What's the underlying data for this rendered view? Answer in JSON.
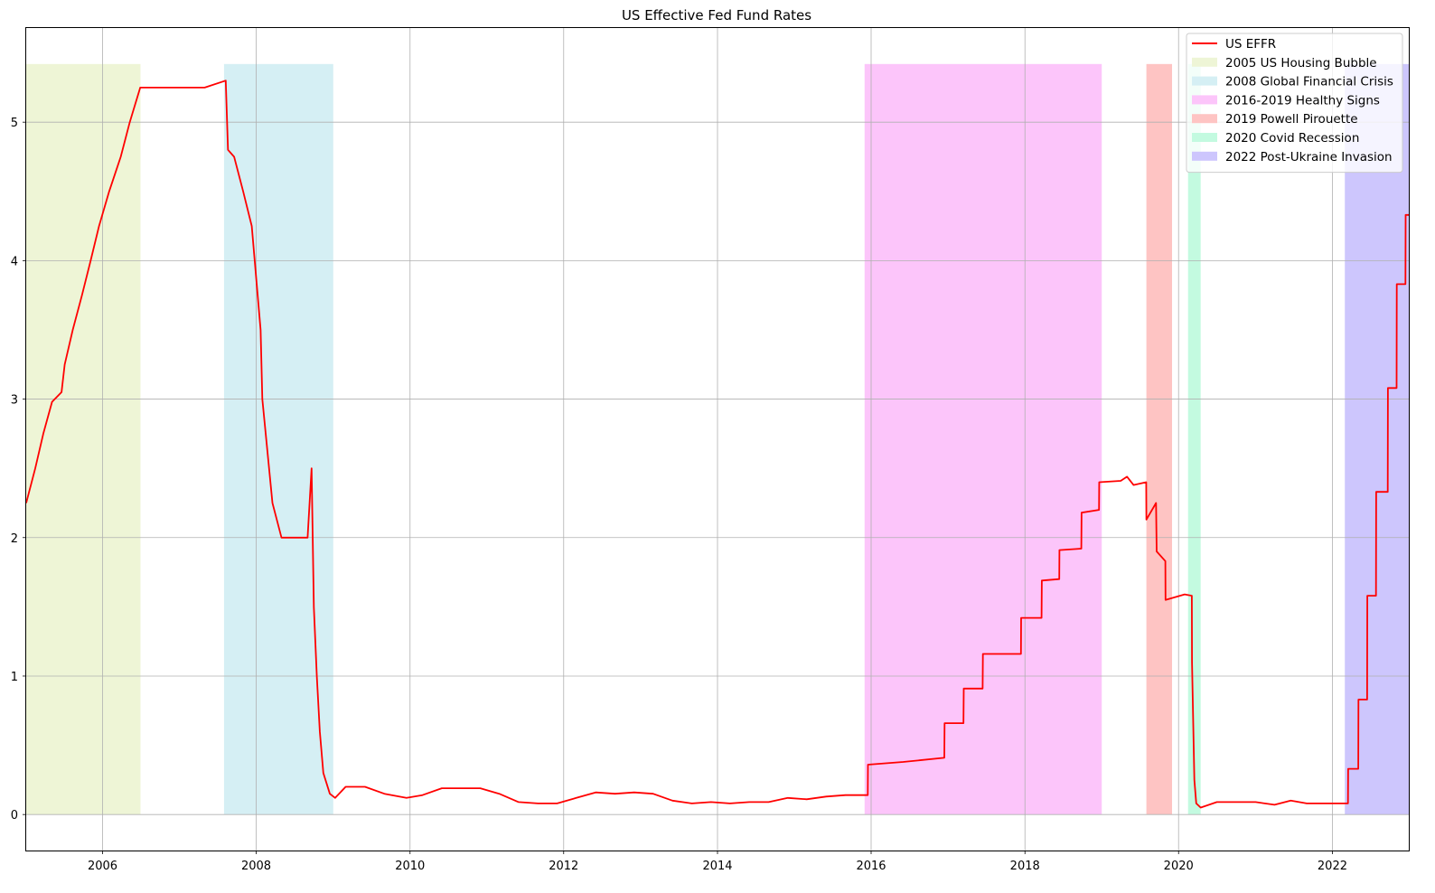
{
  "chart_data": {
    "type": "line",
    "title": "US Effective Fed Fund Rates",
    "xlabel": "",
    "ylabel": "",
    "xlim": [
      "2005-01-03",
      "2022-12-30"
    ],
    "ylim": [
      -0.26,
      5.68
    ],
    "grid": true,
    "legend_position": "top-right",
    "x_ticks": [
      "2006",
      "2008",
      "2010",
      "2012",
      "2014",
      "2016",
      "2018",
      "2020",
      "2022"
    ],
    "y_ticks": [
      "0",
      "1",
      "2",
      "3",
      "4",
      "5"
    ],
    "series": [
      {
        "name": "US EFFR",
        "color": "#ff0000",
        "points": [
          [
            "2005-01-03",
            2.25
          ],
          [
            "2005-02-15",
            2.5
          ],
          [
            "2005-03-25",
            2.75
          ],
          [
            "2005-05-06",
            2.98
          ],
          [
            "2005-06-20",
            3.05
          ],
          [
            "2005-07-05",
            3.25
          ],
          [
            "2005-08-12",
            3.5
          ],
          [
            "2005-09-25",
            3.75
          ],
          [
            "2005-11-05",
            4.0
          ],
          [
            "2005-12-15",
            4.25
          ],
          [
            "2006-02-01",
            4.5
          ],
          [
            "2006-03-28",
            4.75
          ],
          [
            "2006-05-10",
            5.0
          ],
          [
            "2006-06-29",
            5.25
          ],
          [
            "2006-09-01",
            5.25
          ],
          [
            "2007-01-01",
            5.25
          ],
          [
            "2007-05-01",
            5.25
          ],
          [
            "2007-08-09",
            5.3
          ],
          [
            "2007-08-20",
            4.8
          ],
          [
            "2007-09-18",
            4.75
          ],
          [
            "2007-10-31",
            4.5
          ],
          [
            "2007-12-11",
            4.25
          ],
          [
            "2008-01-22",
            3.5
          ],
          [
            "2008-01-30",
            3.0
          ],
          [
            "2008-03-18",
            2.25
          ],
          [
            "2008-04-30",
            2.0
          ],
          [
            "2008-07-01",
            2.0
          ],
          [
            "2008-09-01",
            2.0
          ],
          [
            "2008-09-20",
            2.5
          ],
          [
            "2008-10-01",
            1.5
          ],
          [
            "2008-10-15",
            1.0
          ],
          [
            "2008-10-29",
            0.6
          ],
          [
            "2008-11-15",
            0.3
          ],
          [
            "2008-12-16",
            0.15
          ],
          [
            "2009-01-10",
            0.12
          ],
          [
            "2009-03-01",
            0.2
          ],
          [
            "2009-06-01",
            0.2
          ],
          [
            "2009-09-01",
            0.15
          ],
          [
            "2009-12-15",
            0.12
          ],
          [
            "2010-03-01",
            0.14
          ],
          [
            "2010-06-01",
            0.19
          ],
          [
            "2010-09-01",
            0.19
          ],
          [
            "2010-12-01",
            0.19
          ],
          [
            "2011-03-01",
            0.15
          ],
          [
            "2011-06-01",
            0.09
          ],
          [
            "2011-09-01",
            0.08
          ],
          [
            "2011-12-01",
            0.08
          ],
          [
            "2012-03-01",
            0.12
          ],
          [
            "2012-06-01",
            0.16
          ],
          [
            "2012-09-01",
            0.15
          ],
          [
            "2012-12-01",
            0.16
          ],
          [
            "2013-03-01",
            0.15
          ],
          [
            "2013-06-01",
            0.1
          ],
          [
            "2013-09-01",
            0.08
          ],
          [
            "2013-12-01",
            0.09
          ],
          [
            "2014-03-01",
            0.08
          ],
          [
            "2014-06-01",
            0.09
          ],
          [
            "2014-09-01",
            0.09
          ],
          [
            "2014-12-01",
            0.12
          ],
          [
            "2015-03-01",
            0.11
          ],
          [
            "2015-06-01",
            0.13
          ],
          [
            "2015-09-01",
            0.14
          ],
          [
            "2015-12-16",
            0.14
          ],
          [
            "2015-12-17",
            0.36
          ],
          [
            "2016-06-01",
            0.38
          ],
          [
            "2016-12-14",
            0.41
          ],
          [
            "2016-12-15",
            0.66
          ],
          [
            "2017-03-15",
            0.66
          ],
          [
            "2017-03-16",
            0.91
          ],
          [
            "2017-06-14",
            0.91
          ],
          [
            "2017-06-15",
            1.16
          ],
          [
            "2017-12-13",
            1.16
          ],
          [
            "2017-12-14",
            1.42
          ],
          [
            "2018-03-21",
            1.42
          ],
          [
            "2018-03-22",
            1.69
          ],
          [
            "2018-06-13",
            1.7
          ],
          [
            "2018-06-14",
            1.91
          ],
          [
            "2018-09-26",
            1.92
          ],
          [
            "2018-09-27",
            2.18
          ],
          [
            "2018-12-19",
            2.2
          ],
          [
            "2018-12-20",
            2.4
          ],
          [
            "2019-04-01",
            2.41
          ],
          [
            "2019-05-01",
            2.44
          ],
          [
            "2019-06-01",
            2.38
          ],
          [
            "2019-07-31",
            2.4
          ],
          [
            "2019-08-01",
            2.13
          ],
          [
            "2019-09-16",
            2.25
          ],
          [
            "2019-09-19",
            1.9
          ],
          [
            "2019-10-30",
            1.83
          ],
          [
            "2019-10-31",
            1.55
          ],
          [
            "2020-01-30",
            1.59
          ],
          [
            "2020-03-04",
            1.58
          ],
          [
            "2020-03-05",
            1.1
          ],
          [
            "2020-03-16",
            0.25
          ],
          [
            "2020-03-25",
            0.08
          ],
          [
            "2020-04-15",
            0.05
          ],
          [
            "2020-07-01",
            0.09
          ],
          [
            "2020-10-01",
            0.09
          ],
          [
            "2021-01-01",
            0.09
          ],
          [
            "2021-04-01",
            0.07
          ],
          [
            "2021-06-17",
            0.1
          ],
          [
            "2021-09-01",
            0.08
          ],
          [
            "2022-03-16",
            0.08
          ],
          [
            "2022-03-17",
            0.33
          ],
          [
            "2022-05-04",
            0.33
          ],
          [
            "2022-05-05",
            0.83
          ],
          [
            "2022-06-15",
            0.83
          ],
          [
            "2022-06-16",
            1.58
          ],
          [
            "2022-07-27",
            1.58
          ],
          [
            "2022-07-28",
            2.33
          ],
          [
            "2022-09-21",
            2.33
          ],
          [
            "2022-09-22",
            3.08
          ],
          [
            "2022-11-02",
            3.08
          ],
          [
            "2022-11-03",
            3.83
          ],
          [
            "2022-12-14",
            3.83
          ],
          [
            "2022-12-15",
            4.33
          ],
          [
            "2022-12-30",
            4.33
          ]
        ]
      }
    ],
    "shaded_periods": [
      {
        "name": "2005 US Housing Bubble",
        "start": "2005-01-03",
        "end": "2006-06-30",
        "color": "#eef5d6"
      },
      {
        "name": "2008 Global Financial Crisis",
        "start": "2007-08-01",
        "end": "2009-01-01",
        "color": "#d5eff4"
      },
      {
        "name": "2016-2019 Healthy Signs",
        "start": "2015-12-01",
        "end": "2019-01-01",
        "color": "#fcc5fa"
      },
      {
        "name": "2019 Powell Pirouette",
        "start": "2019-08-01",
        "end": "2019-12-01",
        "color": "#fec4c3"
      },
      {
        "name": "2020 Covid Recession",
        "start": "2020-02-15",
        "end": "2020-04-15",
        "color": "#c3fae0"
      },
      {
        "name": "2022 Post-Ukraine Invasion",
        "start": "2022-03-01",
        "end": "2022-12-30",
        "color": "#cdc6fd"
      }
    ],
    "shade_ymax": 5.42
  }
}
